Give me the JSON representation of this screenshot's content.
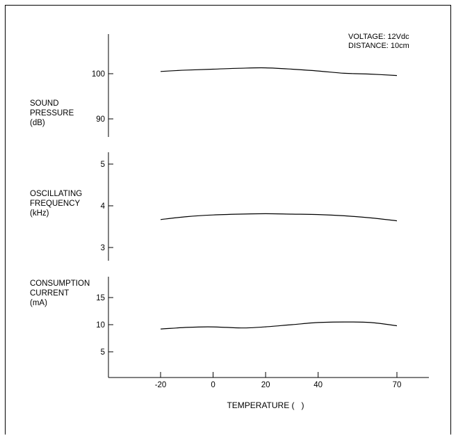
{
  "chart_data": {
    "type": "line",
    "conditions": [
      "VOLTAGE: 12Vdc",
      "DISTANCE: 10cm"
    ],
    "xlabel": "TEMPERATURE (   )",
    "x_ticks": [
      "-20",
      "0",
      "20",
      "40",
      "70"
    ],
    "x_tick_values": [
      -20,
      0,
      20,
      40,
      70
    ],
    "xlim": [
      -40,
      80
    ],
    "panels": [
      {
        "ylabel": [
          "SOUND",
          "PRESSURE",
          "(dB)"
        ],
        "y_ticks": [
          "100",
          "90"
        ],
        "y_tick_values": [
          100,
          90
        ],
        "ylim": [
          85,
          109
        ],
        "x": [
          -20,
          -10,
          0,
          10,
          20,
          30,
          40,
          50,
          60,
          70
        ],
        "y": [
          100.5,
          100.8,
          101.0,
          101.2,
          101.3,
          101.0,
          100.6,
          100.1,
          99.9,
          99.6
        ]
      },
      {
        "ylabel": [
          "OSCILLATING",
          "FREQUENCY",
          " (kHz)"
        ],
        "y_ticks": [
          "5",
          "4",
          "3"
        ],
        "y_tick_values": [
          5,
          4,
          3
        ],
        "ylim": [
          2.7,
          5.3
        ],
        "x": [
          -20,
          -10,
          0,
          10,
          20,
          30,
          40,
          50,
          60,
          70
        ],
        "y": [
          3.67,
          3.74,
          3.78,
          3.8,
          3.81,
          3.8,
          3.79,
          3.76,
          3.71,
          3.64
        ]
      },
      {
        "ylabel": [
          "CONSUMPTION",
          "CURRENT",
          "(mA)"
        ],
        "y_ticks": [
          "15",
          "10",
          "5"
        ],
        "y_tick_values": [
          15,
          10,
          5
        ],
        "ylim": [
          0,
          19
        ],
        "x": [
          -20,
          -10,
          -2,
          5,
          12,
          20,
          30,
          40,
          50,
          60,
          70
        ],
        "y": [
          9.2,
          9.5,
          9.6,
          9.5,
          9.4,
          9.6,
          10.0,
          10.4,
          10.5,
          10.4,
          9.8
        ]
      }
    ]
  }
}
